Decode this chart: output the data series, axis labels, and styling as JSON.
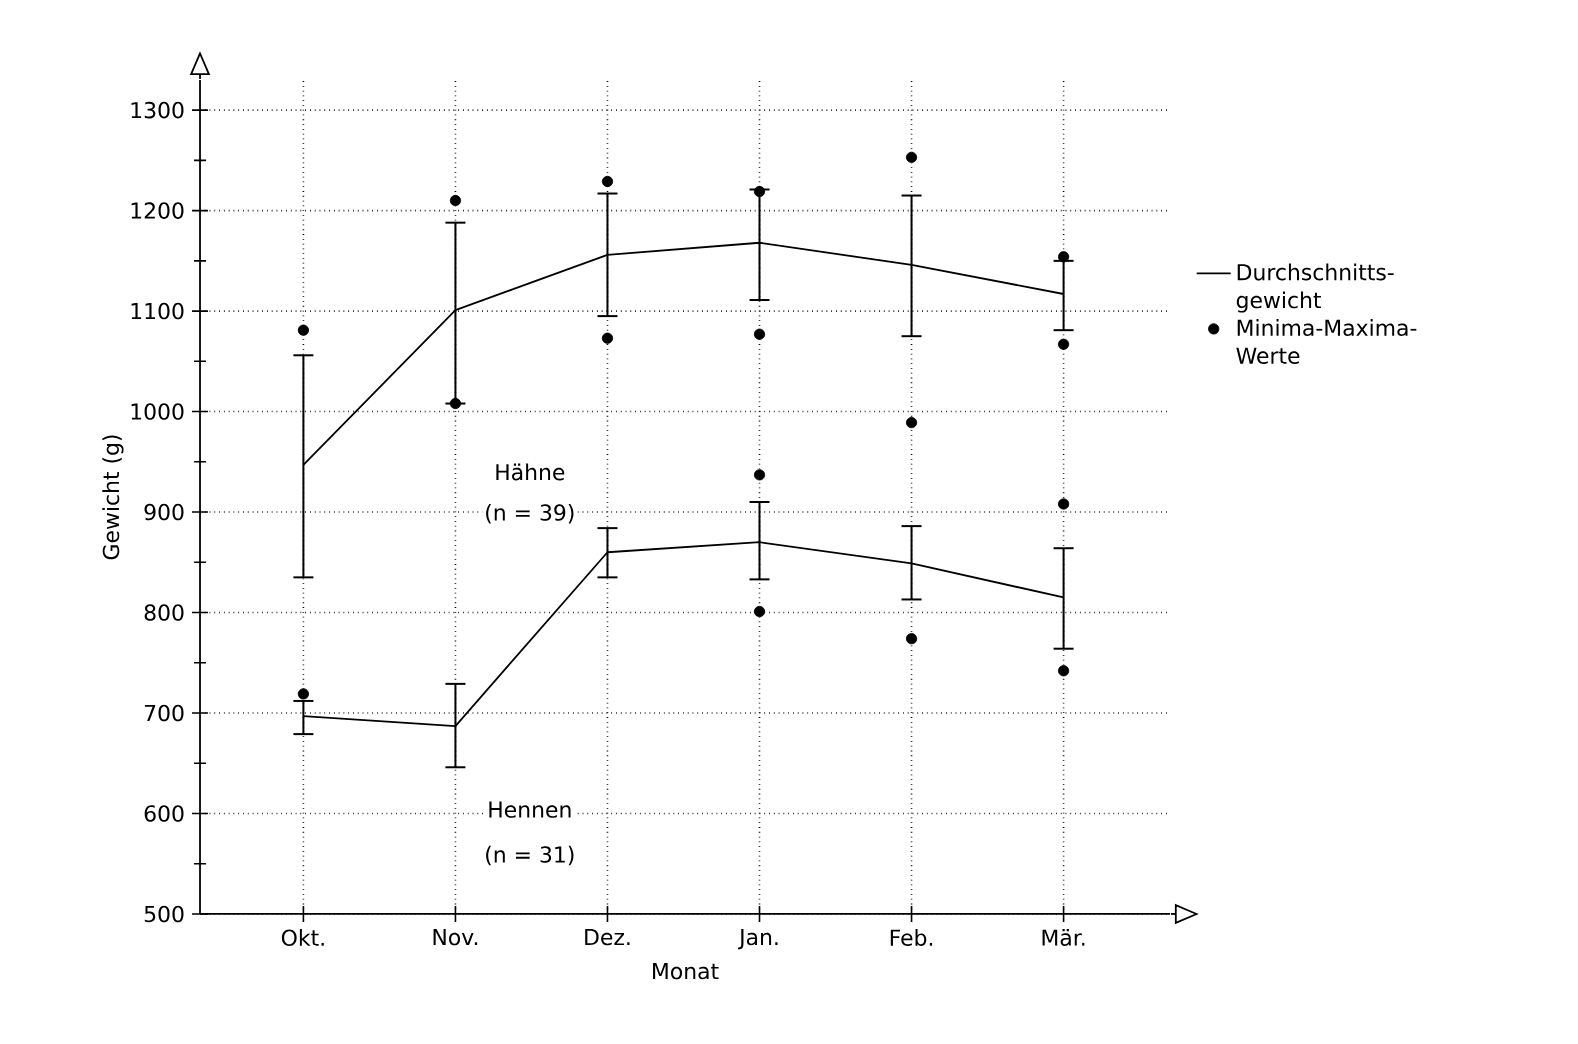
{
  "chart_data": {
    "type": "line",
    "xlabel": "Monat",
    "ylabel": "Gewicht (g)",
    "categories": [
      "Okt.",
      "Nov.",
      "Dez.",
      "Jan.",
      "Feb.",
      "Mär."
    ],
    "series": [
      {
        "name": "Durchschnitts- gewicht",
        "color": "#000000",
        "values": [
          947,
          1101,
          1156,
          1168,
          1146,
          1117
        ],
        "errors": [
          [
            835,
            1056
          ],
          [
            1008,
            1188
          ],
          [
            1095,
            1217
          ],
          [
            1111,
            1221
          ],
          [
            1075,
            1215
          ],
          [
            1081,
            1150
          ]
        ]
      },
      {
        "color": "#000000",
        "values": [
          697,
          687,
          860,
          870,
          849,
          815
        ],
        "errors": [
          [
            679,
            712
          ],
          [
            646,
            729
          ],
          [
            835,
            884
          ],
          [
            833,
            910
          ],
          [
            813,
            886
          ],
          [
            764,
            864
          ]
        ]
      },
      {
        "name": "Minima-Maxima- Werte",
        "type": "scatter",
        "marker": "circle",
        "color": "#000000",
        "x": [
          "Okt.",
          "Nov.",
          "Nov.",
          "Dez.",
          "Dez.",
          "Jan.",
          "Jan.",
          "Feb.",
          "Feb.",
          "Mär.",
          "Mär."
        ],
        "values": [
          1081,
          1210,
          1008,
          1229,
          1073,
          1219,
          1077,
          1253,
          989,
          1154,
          1067
        ]
      },
      {
        "type": "scatter",
        "marker": "circle",
        "color": "#000000",
        "x": [
          "Okt.",
          "Jan.",
          "Jan.",
          "Feb.",
          "Mär.",
          "Mär."
        ],
        "values": [
          719,
          937,
          801,
          774,
          908,
          742
        ]
      }
    ],
    "annotations": [
      "Hähne",
      "(n = 39)",
      "Hennen",
      "(n = 31)"
    ],
    "ylim": [
      500,
      1330
    ],
    "yticks": [
      500,
      600,
      700,
      800,
      900,
      1000,
      1100,
      1200,
      1300
    ],
    "grid": true,
    "legend": "right",
    "marker": "none",
    "line_style": "solid"
  }
}
